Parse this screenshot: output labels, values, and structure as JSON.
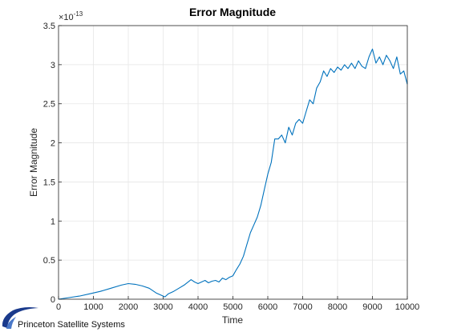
{
  "chart_data": {
    "type": "line",
    "title": "Error Magnitude",
    "xlabel": "Time",
    "ylabel": "Error Magnitude",
    "y_exponent_label": "×10",
    "y_exponent_power": "-13",
    "xlim": [
      0,
      10000
    ],
    "ylim": [
      0,
      3.5
    ],
    "x_ticks": [
      "0",
      "1000",
      "2000",
      "3000",
      "4000",
      "5000",
      "6000",
      "7000",
      "8000",
      "9000",
      "10000"
    ],
    "y_ticks": [
      "0",
      "0.5",
      "1",
      "1.5",
      "2",
      "2.5",
      "3",
      "3.5"
    ],
    "grid": true,
    "line_color": "#0072BD",
    "series": [
      {
        "x": [
          0,
          300,
          600,
          900,
          1200,
          1500,
          1800,
          2000,
          2200,
          2400,
          2600,
          2800,
          2950,
          3050,
          3150,
          3300,
          3450,
          3600,
          3800,
          3900,
          4000,
          4100,
          4200,
          4300,
          4400,
          4500,
          4600,
          4700,
          4800,
          4900,
          5000,
          5100,
          5200,
          5300,
          5400,
          5500,
          5600,
          5700,
          5800,
          5900,
          6000,
          6100,
          6200,
          6300,
          6400,
          6500,
          6600,
          6700,
          6800,
          6900,
          7000,
          7100,
          7200,
          7300,
          7400,
          7500,
          7600,
          7700,
          7800,
          7900,
          8000,
          8100,
          8200,
          8300,
          8400,
          8500,
          8600,
          8700,
          8800,
          8900,
          9000,
          9100,
          9200,
          9300,
          9400,
          9500,
          9600,
          9700,
          9800,
          9900,
          10000
        ],
        "y": [
          0.0,
          0.02,
          0.04,
          0.07,
          0.1,
          0.14,
          0.18,
          0.2,
          0.19,
          0.17,
          0.14,
          0.08,
          0.05,
          0.03,
          0.07,
          0.1,
          0.14,
          0.18,
          0.25,
          0.22,
          0.2,
          0.22,
          0.24,
          0.21,
          0.23,
          0.24,
          0.22,
          0.27,
          0.25,
          0.28,
          0.3,
          0.38,
          0.45,
          0.55,
          0.7,
          0.85,
          0.95,
          1.05,
          1.2,
          1.4,
          1.6,
          1.75,
          2.05,
          2.05,
          2.1,
          2.0,
          2.2,
          2.1,
          2.25,
          2.3,
          2.25,
          2.4,
          2.55,
          2.5,
          2.7,
          2.78,
          2.92,
          2.85,
          2.95,
          2.9,
          2.97,
          2.93,
          3.0,
          2.95,
          3.02,
          2.95,
          3.05,
          2.98,
          2.95,
          3.1,
          3.2,
          3.02,
          3.1,
          3.0,
          3.12,
          3.05,
          2.95,
          3.1,
          2.88,
          2.92,
          2.75
        ]
      }
    ]
  },
  "logo": {
    "name": "Princeton Satellite Systems"
  }
}
